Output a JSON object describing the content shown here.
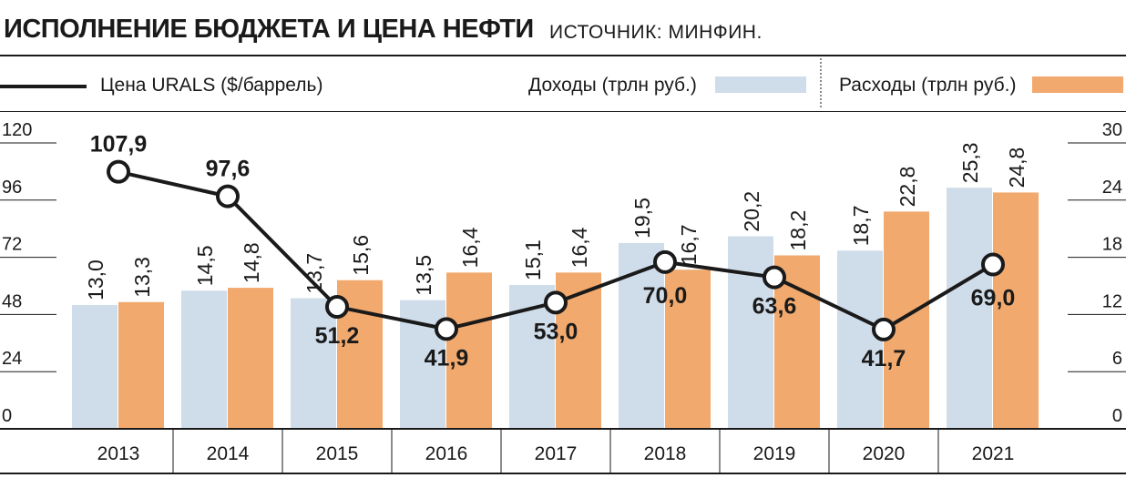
{
  "header": {
    "title": "ИСПОЛНЕНИЕ БЮДЖЕТА И ЦЕНА НЕФТИ",
    "source": "ИСТОЧНИК: МИНФИН."
  },
  "legend": {
    "line_label": "Цена URALS ($/баррель)",
    "income_label": "Доходы (трлн руб.)",
    "expense_label": "Расходы (трлн руб.)"
  },
  "colors": {
    "income": "#cfdce9",
    "expense": "#f1a96e",
    "line": "#1a1a1a"
  },
  "chart_data": {
    "type": "bar",
    "categories": [
      "2013",
      "2014",
      "2015",
      "2016",
      "2017",
      "2018",
      "2019",
      "2020",
      "2021"
    ],
    "series": [
      {
        "name": "Доходы (трлн руб.)",
        "axis": "right",
        "values": [
          13.0,
          14.5,
          13.7,
          13.5,
          15.1,
          19.5,
          20.2,
          18.7,
          25.3
        ],
        "labels": [
          "13,0",
          "14,5",
          "13,7",
          "13,5",
          "15,1",
          "19,5",
          "20,2",
          "18,7",
          "25,3"
        ]
      },
      {
        "name": "Расходы (трлн руб.)",
        "axis": "right",
        "values": [
          13.3,
          14.8,
          15.6,
          16.4,
          16.4,
          16.7,
          18.2,
          22.8,
          24.8
        ],
        "labels": [
          "13,3",
          "14,8",
          "15,6",
          "16,4",
          "16,4",
          "16,7",
          "18,2",
          "22,8",
          "24,8"
        ]
      },
      {
        "name": "Цена URALS ($/баррель)",
        "type": "line",
        "axis": "left",
        "values": [
          107.9,
          97.6,
          51.2,
          41.9,
          53.0,
          70.0,
          63.6,
          41.7,
          69.0
        ],
        "labels": [
          "107,9",
          "97,6",
          "51,2",
          "41,9",
          "53,0",
          "70,0",
          "63,6",
          "41,7",
          "69,0"
        ]
      }
    ],
    "y_left": {
      "ylim": [
        0,
        120
      ],
      "ticks": [
        "0",
        "24",
        "48",
        "72",
        "96",
        "120"
      ]
    },
    "y_right": {
      "ylim": [
        0,
        30
      ],
      "ticks": [
        "0",
        "6",
        "12",
        "18",
        "24",
        "30"
      ]
    }
  }
}
